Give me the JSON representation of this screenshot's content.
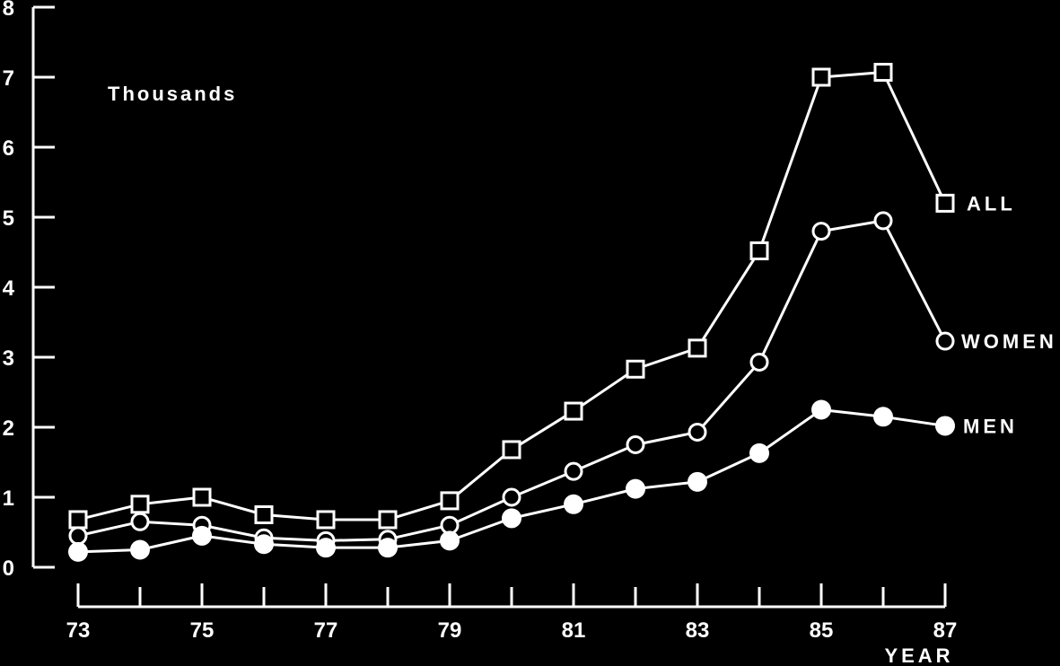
{
  "chart_data": {
    "type": "line",
    "y_unit_label": "Thousands",
    "xlabel": "YEAR",
    "ylabel": "",
    "x": [
      73,
      74,
      75,
      76,
      77,
      78,
      79,
      80,
      81,
      82,
      83,
      84,
      85,
      86,
      87
    ],
    "x_tick_labels": [
      "73",
      "75",
      "77",
      "79",
      "81",
      "83",
      "85",
      "87"
    ],
    "x_tick_values": [
      73,
      75,
      77,
      79,
      81,
      83,
      85,
      87
    ],
    "y_tick_labels": [
      "0",
      "1",
      "2",
      "3",
      "4",
      "5",
      "6",
      "7",
      "8"
    ],
    "y_tick_values": [
      0,
      1,
      2,
      3,
      4,
      5,
      6,
      7,
      8
    ],
    "xlim": [
      73,
      87
    ],
    "ylim": [
      0,
      8
    ],
    "grid": false,
    "colors": {
      "background": "#000000",
      "foreground": "#ffffff"
    },
    "series": [
      {
        "name": "ALL",
        "marker": "square",
        "values": [
          0.68,
          0.9,
          1.0,
          0.75,
          0.68,
          0.68,
          0.95,
          1.68,
          2.23,
          2.83,
          3.13,
          4.52,
          7.0,
          7.07,
          5.2
        ]
      },
      {
        "name": "WOMEN",
        "marker": "circle-open",
        "values": [
          0.45,
          0.65,
          0.6,
          0.42,
          0.38,
          0.4,
          0.6,
          1.0,
          1.37,
          1.75,
          1.93,
          2.93,
          4.8,
          4.95,
          3.23
        ]
      },
      {
        "name": "MEN",
        "marker": "circle-filled",
        "values": [
          0.22,
          0.25,
          0.45,
          0.33,
          0.28,
          0.28,
          0.38,
          0.7,
          0.9,
          1.12,
          1.22,
          1.63,
          2.25,
          2.15,
          2.02
        ]
      }
    ]
  }
}
